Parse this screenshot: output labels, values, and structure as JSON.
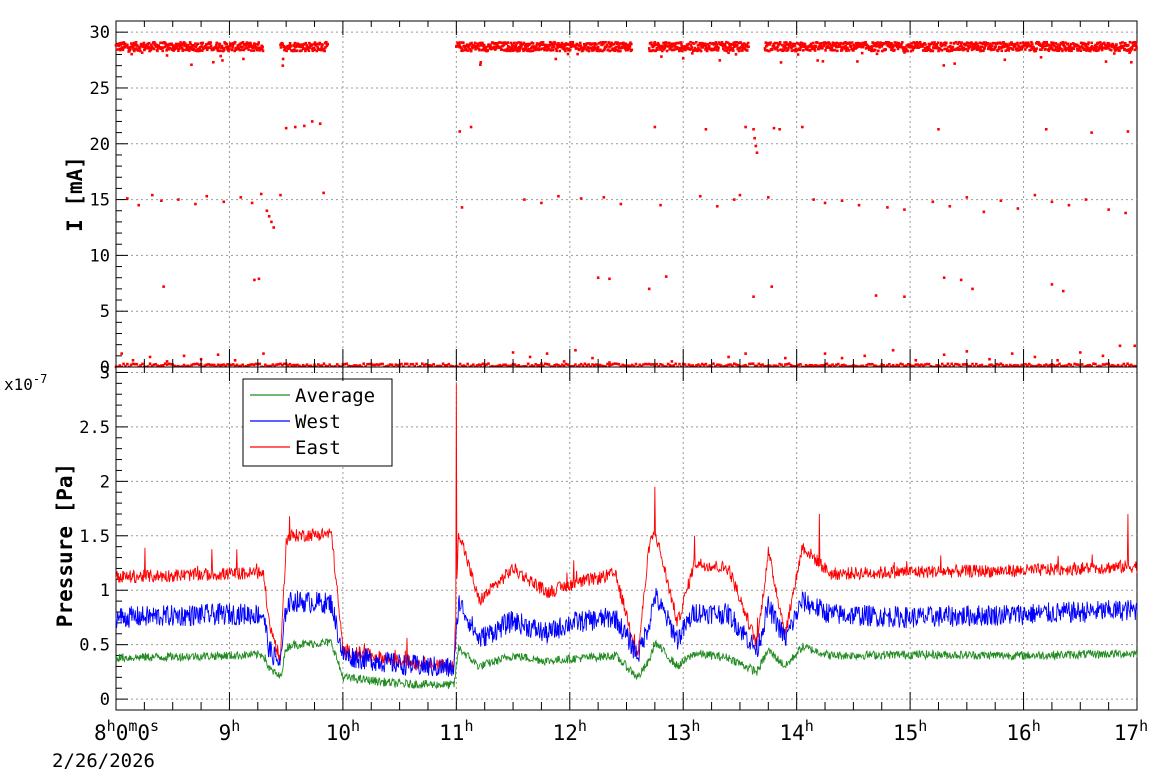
{
  "chart_data": [
    {
      "type": "scatter",
      "ylabel": "I [mA]",
      "ylim": [
        0,
        31
      ],
      "yticks": [
        0,
        5,
        10,
        15,
        20,
        25,
        30
      ],
      "grid": true,
      "x_range_hours": [
        8,
        17
      ],
      "series": [
        {
          "color": "#ff0000",
          "bands": [
            {
              "level": 28.7,
              "spread": 0.4,
              "segments": [
                [
                  8.0,
                  9.3
                ],
                [
                  9.45,
                  9.87
                ],
                [
                  11.0,
                  12.55
                ],
                [
                  12.7,
                  13.58
                ],
                [
                  13.72,
                  17.0
                ]
              ]
            },
            {
              "level": 0.15,
              "spread": 0.15,
              "segments": [
                [
                  8.0,
                  17.0
                ]
              ]
            }
          ],
          "points": [
            [
              8.05,
              1.2
            ],
            [
              8.15,
              0.6
            ],
            [
              8.3,
              0.9
            ],
            [
              8.45,
              0.5
            ],
            [
              8.6,
              1.0
            ],
            [
              8.75,
              0.7
            ],
            [
              8.9,
              1.1
            ],
            [
              9.05,
              0.6
            ],
            [
              9.3,
              1.2
            ],
            [
              8.1,
              15.1
            ],
            [
              8.2,
              14.5
            ],
            [
              8.32,
              15.4
            ],
            [
              8.4,
              14.9
            ],
            [
              8.55,
              15.0
            ],
            [
              8.7,
              14.6
            ],
            [
              8.8,
              15.3
            ],
            [
              8.95,
              14.8
            ],
            [
              9.1,
              15.2
            ],
            [
              9.2,
              14.7
            ],
            [
              9.28,
              15.5
            ],
            [
              9.35,
              13.5
            ],
            [
              9.37,
              13.0
            ],
            [
              9.39,
              12.5
            ],
            [
              9.33,
              14.0
            ],
            [
              9.22,
              7.8
            ],
            [
              9.26,
              7.9
            ],
            [
              8.42,
              7.2
            ],
            [
              9.5,
              21.4
            ],
            [
              9.58,
              21.5
            ],
            [
              9.66,
              21.6
            ],
            [
              9.73,
              22.0
            ],
            [
              9.8,
              21.8
            ],
            [
              9.45,
              15.4
            ],
            [
              9.83,
              15.6
            ],
            [
              9.47,
              27.0
            ],
            [
              11.03,
              21.1
            ],
            [
              11.13,
              21.5
            ],
            [
              11.05,
              14.3
            ],
            [
              11.5,
              1.3
            ],
            [
              11.65,
              0.9
            ],
            [
              11.8,
              1.2
            ],
            [
              11.95,
              0.5
            ],
            [
              12.05,
              1.5
            ],
            [
              12.2,
              0.8
            ],
            [
              12.35,
              0.4
            ],
            [
              11.6,
              15.0
            ],
            [
              11.75,
              14.7
            ],
            [
              11.9,
              15.3
            ],
            [
              12.1,
              15.1
            ],
            [
              12.3,
              15.2
            ],
            [
              12.45,
              14.6
            ],
            [
              12.25,
              8.0
            ],
            [
              12.35,
              7.9
            ],
            [
              12.7,
              7.0
            ],
            [
              12.85,
              8.1
            ],
            [
              12.75,
              21.5
            ],
            [
              13.2,
              21.3
            ],
            [
              13.55,
              21.5
            ],
            [
              13.15,
              15.3
            ],
            [
              13.3,
              14.4
            ],
            [
              13.45,
              15.0
            ],
            [
              13.5,
              15.4
            ],
            [
              12.8,
              14.5
            ],
            [
              13.62,
              6.3
            ],
            [
              13.55,
              1.2
            ],
            [
              13.4,
              0.9
            ],
            [
              12.9,
              0.5
            ],
            [
              13.62,
              21.3
            ],
            [
              13.63,
              20.5
            ],
            [
              13.64,
              19.8
            ],
            [
              13.65,
              19.2
            ],
            [
              13.8,
              21.4
            ],
            [
              13.85,
              21.3
            ],
            [
              14.05,
              21.5
            ],
            [
              13.78,
              7.2
            ],
            [
              13.75,
              15.2
            ],
            [
              13.9,
              0.8
            ],
            [
              14.15,
              15.0
            ],
            [
              14.25,
              14.7
            ],
            [
              14.4,
              14.9
            ],
            [
              14.55,
              14.5
            ],
            [
              14.8,
              14.3
            ],
            [
              14.95,
              14.1
            ],
            [
              15.2,
              14.8
            ],
            [
              15.35,
              14.4
            ],
            [
              15.5,
              15.2
            ],
            [
              15.65,
              13.9
            ],
            [
              15.8,
              14.9
            ],
            [
              15.95,
              14.2
            ],
            [
              16.1,
              15.4
            ],
            [
              16.25,
              14.8
            ],
            [
              16.4,
              14.5
            ],
            [
              16.55,
              15.0
            ],
            [
              16.75,
              14.1
            ],
            [
              16.9,
              13.8
            ],
            [
              15.25,
              21.3
            ],
            [
              16.2,
              21.3
            ],
            [
              16.6,
              21.0
            ],
            [
              16.92,
              21.1
            ],
            [
              14.7,
              6.4
            ],
            [
              14.95,
              6.3
            ],
            [
              15.3,
              8.0
            ],
            [
              15.45,
              7.8
            ],
            [
              15.55,
              7.0
            ],
            [
              16.25,
              7.4
            ],
            [
              16.35,
              6.8
            ],
            [
              14.25,
              1.2
            ],
            [
              14.4,
              0.8
            ],
            [
              14.6,
              1.0
            ],
            [
              14.85,
              1.5
            ],
            [
              15.05,
              0.6
            ],
            [
              15.3,
              1.1
            ],
            [
              15.5,
              1.4
            ],
            [
              15.7,
              0.7
            ],
            [
              15.9,
              1.2
            ],
            [
              16.1,
              0.9
            ],
            [
              16.3,
              0.6
            ],
            [
              16.5,
              1.3
            ],
            [
              16.7,
              1.0
            ],
            [
              16.85,
              1.9
            ],
            [
              16.98,
              1.9
            ]
          ]
        }
      ]
    },
    {
      "type": "line",
      "ylabel": "Pressure [Pa]",
      "y_multiplier_label": "x10",
      "y_multiplier_exponent": "-7",
      "ylim": [
        -0.1,
        3.05
      ],
      "yticks": [
        0,
        0.5,
        1,
        1.5,
        2,
        2.5,
        3
      ],
      "ytick_labels": [
        "0",
        "0.5",
        "1",
        "1.5",
        "2",
        "2.5",
        "3"
      ],
      "grid": true,
      "legend_position": "top-left",
      "x": [
        8.0,
        9.0,
        9.3,
        9.35,
        9.45,
        9.5,
        9.55,
        9.9,
        10.0,
        10.5,
        10.98,
        11.02,
        11.2,
        11.5,
        11.8,
        12.0,
        12.4,
        12.6,
        12.7,
        12.75,
        12.95,
        13.1,
        13.4,
        13.65,
        13.75,
        13.9,
        14.05,
        14.3,
        15.0,
        16.0,
        17.0
      ],
      "series": [
        {
          "name": "Average",
          "color": "#228B22",
          "noise": 0.04,
          "values": [
            0.38,
            0.4,
            0.41,
            0.28,
            0.2,
            0.47,
            0.5,
            0.52,
            0.2,
            0.14,
            0.13,
            0.47,
            0.3,
            0.4,
            0.35,
            0.37,
            0.4,
            0.2,
            0.35,
            0.52,
            0.3,
            0.42,
            0.38,
            0.25,
            0.45,
            0.3,
            0.48,
            0.4,
            0.41,
            0.4,
            0.42
          ]
        },
        {
          "name": "West",
          "color": "#0000ff",
          "noise": 0.1,
          "values": [
            0.75,
            0.78,
            0.78,
            0.45,
            0.32,
            0.85,
            0.9,
            0.88,
            0.4,
            0.32,
            0.28,
            0.9,
            0.55,
            0.72,
            0.6,
            0.7,
            0.75,
            0.4,
            0.7,
            0.95,
            0.55,
            0.8,
            0.78,
            0.45,
            0.85,
            0.55,
            0.9,
            0.78,
            0.75,
            0.78,
            0.82
          ]
        },
        {
          "name": "East",
          "color": "#ff0000",
          "noise": 0.06,
          "values": [
            1.12,
            1.15,
            1.16,
            0.7,
            0.35,
            1.45,
            1.5,
            1.52,
            0.45,
            0.35,
            0.3,
            1.55,
            0.9,
            1.2,
            0.98,
            1.05,
            1.15,
            0.4,
            1.4,
            1.55,
            0.7,
            1.25,
            1.2,
            0.5,
            1.35,
            0.6,
            1.4,
            1.15,
            1.17,
            1.18,
            1.22
          ]
        }
      ],
      "spikes": [
        [
          11.0,
          2.9
        ],
        [
          12.75,
          1.95
        ],
        [
          13.1,
          1.5
        ],
        [
          14.2,
          1.7
        ],
        [
          16.92,
          1.7
        ]
      ]
    }
  ],
  "x_axis": {
    "start_label_parts": [
      {
        "text": "8"
      },
      {
        "text": "h",
        "sup": true
      },
      {
        "text": "0"
      },
      {
        "text": "m",
        "sup": true
      },
      {
        "text": "0"
      },
      {
        "text": "s",
        "sup": true
      }
    ],
    "hour_labels": [
      {
        "hour": 9,
        "text": "9"
      },
      {
        "hour": 10,
        "text": "10"
      },
      {
        "hour": 11,
        "text": "11"
      },
      {
        "hour": 12,
        "text": "12"
      },
      {
        "hour": 13,
        "text": "13"
      },
      {
        "hour": 14,
        "text": "14"
      },
      {
        "hour": 15,
        "text": "15"
      },
      {
        "hour": 16,
        "text": "16"
      },
      {
        "hour": 17,
        "text": "17"
      }
    ],
    "hour_suffix": "h",
    "date": "2/26/2026"
  }
}
